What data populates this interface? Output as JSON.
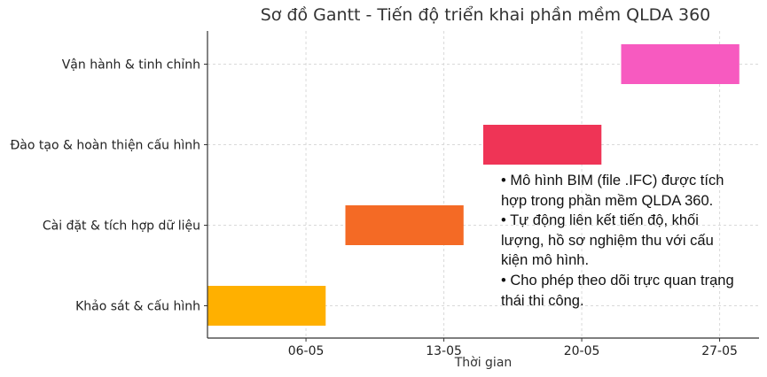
{
  "chart_data": {
    "type": "gantt",
    "title": "Sơ đồ Gantt - Tiến độ triển khai phần mềm QLDA 360",
    "xlabel": "Thời gian",
    "ylabel": "",
    "x_ticks": [
      "06-05",
      "13-05",
      "20-05",
      "27-05"
    ],
    "x_range": [
      "2024-05-01",
      "2024-05-29"
    ],
    "grid": true,
    "tasks": [
      {
        "name": "Khảo sát & cấu hình",
        "start": "2024-05-01",
        "end": "2024-05-07",
        "color": "#FFB000"
      },
      {
        "name": "Cài đặt & tích hợp dữ liệu",
        "start": "2024-05-08",
        "end": "2024-05-14",
        "color": "#F46A25"
      },
      {
        "name": "Đào tạo & hoàn thiện cấu hình",
        "start": "2024-05-15",
        "end": "2024-05-21",
        "color": "#EF3456"
      },
      {
        "name": "Vận hành & tinh chỉnh",
        "start": "2024-05-22",
        "end": "2024-05-28",
        "color": "#F75AC0"
      }
    ]
  },
  "annotation": {
    "lines": [
      "• Mô hình BIM (file .IFC) được tích",
      "hợp trong phần mềm QLDA 360.",
      "• Tự động liên kết tiến độ, khối",
      "lượng, hồ sơ nghiệm thu với cấu",
      "kiện mô hình.",
      "• Cho phép theo dõi trực quan trạng",
      "thái thi công."
    ]
  }
}
